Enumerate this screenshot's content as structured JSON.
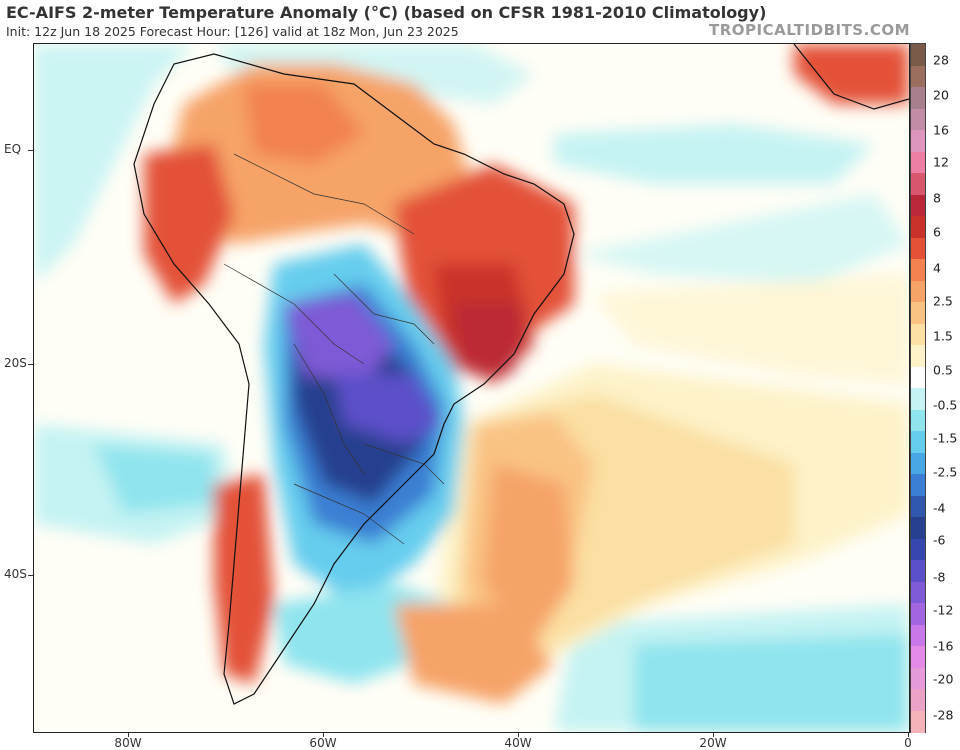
{
  "header": {
    "title": "EC-AIFS 2-meter Temperature Anomaly (°C) (based on CFSR 1981-2010 Climatology)",
    "subtitle": "Init: 12z Jun 18 2025   Forecast Hour: [126]   valid at 18z Mon, Jun 23 2025",
    "credit": "TROPICALTIDBITS.COM"
  },
  "map": {
    "lat_labels": [
      "EQ",
      "20S",
      "40S"
    ],
    "lon_labels": [
      "80W",
      "60W",
      "40W",
      "20W",
      "0"
    ]
  },
  "colorbar": {
    "labels": [
      "28",
      "20",
      "16",
      "12",
      "8",
      "6",
      "4",
      "2.5",
      "1.5",
      "0.5",
      "-0.5",
      "-1.5",
      "-2.5",
      "-4",
      "-6",
      "-8",
      "-12",
      "-16",
      "-20",
      "-28"
    ],
    "colors": [
      "#7a5b4a",
      "#9c6e5e",
      "#a87f8d",
      "#c28ba6",
      "#dc95bc",
      "#ee7fa4",
      "#d8566e",
      "#b8283a",
      "#c9312b",
      "#e35137",
      "#f28250",
      "#f6a368",
      "#f9c384",
      "#fbdfa3",
      "#fdf2c8",
      "#ffffff",
      "#c5f3f3",
      "#8fe4ee",
      "#66cdee",
      "#49a7e6",
      "#3a7fd3",
      "#2f58ad",
      "#26408f",
      "#3648b0",
      "#5b50c9",
      "#7e5ad6",
      "#a166e0",
      "#c878e8",
      "#e28ae6",
      "#e49ad8",
      "#eca2c7",
      "#f3b3b8"
    ]
  }
}
